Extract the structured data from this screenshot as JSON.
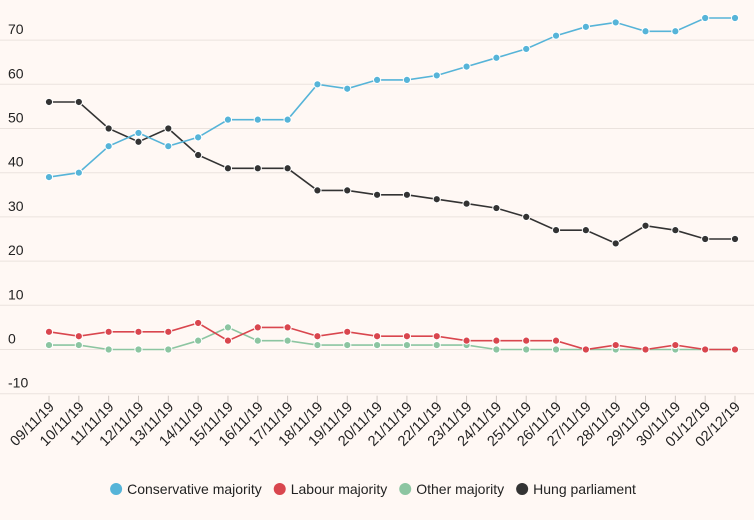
{
  "chart_data": {
    "type": "line",
    "title": "",
    "xlabel": "",
    "ylabel": "",
    "categories": [
      "09/11/19",
      "10/11/19",
      "11/11/19",
      "12/11/19",
      "13/11/19",
      "14/11/19",
      "15/11/19",
      "16/11/19",
      "17/11/19",
      "18/11/19",
      "19/11/19",
      "20/11/19",
      "21/11/19",
      "22/11/19",
      "23/11/19",
      "24/11/19",
      "25/11/19",
      "26/11/19",
      "27/11/19",
      "28/11/19",
      "29/11/19",
      "30/11/19",
      "01/12/19",
      "02/12/19"
    ],
    "ylim": [
      -10,
      80
    ],
    "yticks": [
      -10,
      0,
      10,
      20,
      30,
      40,
      50,
      60,
      70
    ],
    "grid": true,
    "legend_position": "bottom",
    "series": [
      {
        "name": "Conservative majority",
        "color": "#56b4d8",
        "values": [
          39,
          40,
          46,
          49,
          46,
          48,
          52,
          52,
          52,
          60,
          59,
          61,
          61,
          62,
          64,
          66,
          68,
          71,
          73,
          74,
          72,
          72,
          75,
          75
        ]
      },
      {
        "name": "Labour majority",
        "color": "#d9464e",
        "values": [
          4,
          3,
          4,
          4,
          4,
          6,
          2,
          5,
          5,
          3,
          4,
          3,
          3,
          3,
          2,
          2,
          2,
          2,
          0,
          1,
          0,
          1,
          0,
          0
        ]
      },
      {
        "name": "Other majority",
        "color": "#8cc5a1",
        "values": [
          1,
          1,
          0,
          0,
          0,
          2,
          5,
          2,
          2,
          1,
          1,
          1,
          1,
          1,
          1,
          0,
          0,
          0,
          0,
          0,
          0,
          0,
          0,
          0
        ]
      },
      {
        "name": "Hung parliament",
        "color": "#333333",
        "values": [
          56,
          56,
          50,
          47,
          50,
          44,
          41,
          41,
          41,
          36,
          36,
          35,
          35,
          34,
          33,
          32,
          30,
          27,
          27,
          24,
          28,
          27,
          25,
          25
        ]
      }
    ]
  }
}
